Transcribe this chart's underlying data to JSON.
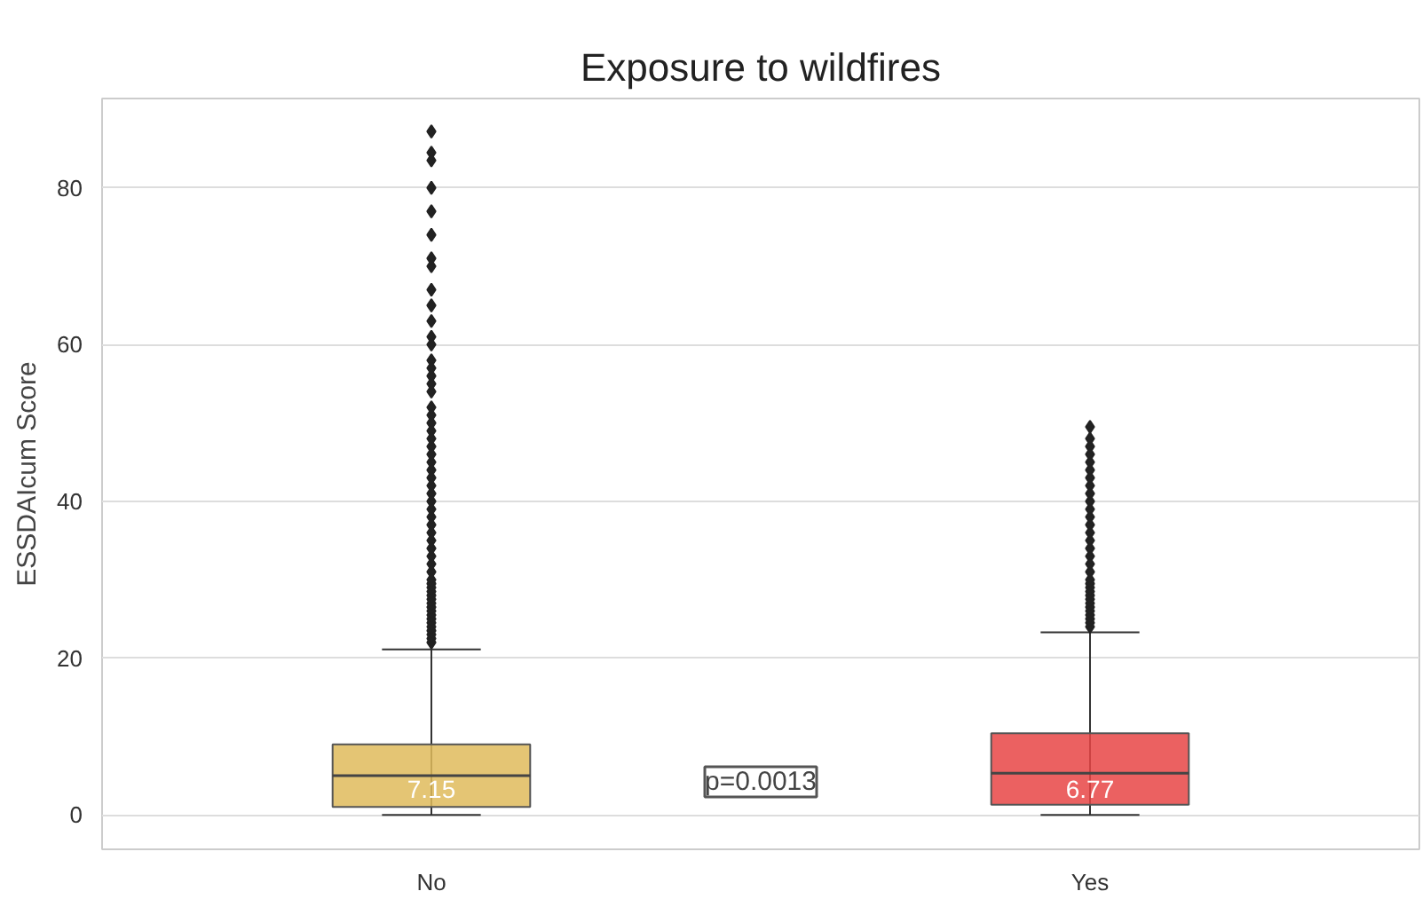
{
  "chart_data": {
    "type": "box",
    "title": "Exposure to wildfires",
    "ylabel": "ESSDAIcum Score",
    "categories": [
      "No",
      "Yes"
    ],
    "series": [
      {
        "color": "#dfbb5c",
        "boxes": [
          {
            "low": 0,
            "q1": 1.0,
            "median": 5.0,
            "q3": 9.0,
            "high": 21.1,
            "outliers": [
              22,
              22.5,
              23,
              23.5,
              24,
              24.5,
              25,
              25.5,
              26,
              26.5,
              27,
              27.5,
              28,
              28.5,
              29,
              29.5,
              30,
              31,
              32,
              33,
              34,
              35,
              36,
              37,
              38,
              39,
              40,
              41,
              42,
              43,
              44,
              45,
              46,
              47,
              48,
              49,
              50,
              51,
              52,
              54,
              55,
              56,
              57,
              58,
              60,
              61,
              63,
              65,
              67,
              70,
              71,
              74,
              77,
              80,
              83.5,
              84.5,
              87.2
            ]
          },
          null
        ]
      },
      {
        "color": "#e84545",
        "boxes": [
          null,
          {
            "low": 0,
            "q1": 1.3,
            "median": 5.3,
            "q3": 10.4,
            "high": 23.3,
            "outliers": [
              24,
              24.5,
              25,
              25.5,
              26,
              26.5,
              27,
              27.5,
              28,
              28.5,
              29,
              29.5,
              30,
              31,
              32,
              33,
              34,
              35,
              36,
              37,
              38,
              39,
              40,
              41,
              42,
              43,
              44,
              45,
              46,
              47,
              48,
              49.5
            ]
          }
        ]
      }
    ],
    "ylim": [
      -4.4,
      91.4
    ],
    "yticks": [
      0,
      20,
      40,
      60,
      80
    ],
    "grid": "y",
    "marker": "diamond",
    "annotations": [
      "p=0.0013",
      {
        "text": "7.15",
        "x": "No",
        "y": 3.3
      },
      {
        "text": "6.77",
        "x": "Yes",
        "y": 3.3
      }
    ]
  }
}
